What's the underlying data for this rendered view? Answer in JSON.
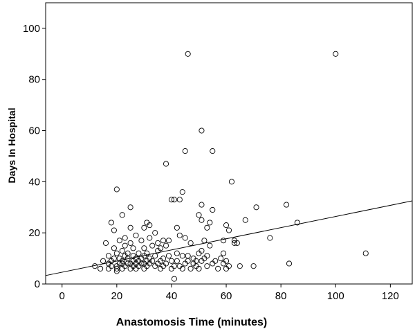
{
  "chart_data": {
    "type": "scatter",
    "title": "",
    "xlabel": "Anastomosis Time (minutes)",
    "ylabel": "Days In Hospital",
    "xlim": [
      -6,
      128
    ],
    "ylim": [
      0,
      110
    ],
    "x_ticks": [
      0,
      20,
      40,
      60,
      80,
      100,
      120
    ],
    "y_ticks": [
      0,
      20,
      40,
      60,
      80,
      100
    ],
    "grid": false,
    "legend": "none",
    "marker": "open-circle",
    "colors": {
      "background": "#ffffff",
      "marker": "#000000",
      "line": "#000000"
    },
    "fit_line": {
      "type": "linear",
      "x": [
        -6,
        128
      ],
      "y": [
        3.3,
        32.5
      ]
    },
    "points": [
      [
        12,
        7
      ],
      [
        14,
        6
      ],
      [
        15,
        9
      ],
      [
        16,
        16
      ],
      [
        17,
        8
      ],
      [
        17,
        6
      ],
      [
        17,
        11
      ],
      [
        18,
        24
      ],
      [
        18,
        7
      ],
      [
        18,
        9
      ],
      [
        19,
        10
      ],
      [
        19,
        14
      ],
      [
        19,
        21
      ],
      [
        20,
        37
      ],
      [
        20,
        7
      ],
      [
        20,
        5
      ],
      [
        20,
        12
      ],
      [
        20,
        6
      ],
      [
        21,
        8
      ],
      [
        21,
        10
      ],
      [
        21,
        17
      ],
      [
        22,
        27
      ],
      [
        22,
        8
      ],
      [
        22,
        6
      ],
      [
        22,
        9
      ],
      [
        22,
        13
      ],
      [
        23,
        15
      ],
      [
        23,
        11
      ],
      [
        23,
        7
      ],
      [
        23,
        18
      ],
      [
        24,
        8
      ],
      [
        24,
        10
      ],
      [
        24,
        12
      ],
      [
        25,
        30
      ],
      [
        25,
        6
      ],
      [
        25,
        8
      ],
      [
        25,
        22
      ],
      [
        25,
        16
      ],
      [
        26,
        9
      ],
      [
        26,
        11
      ],
      [
        26,
        7
      ],
      [
        26,
        14
      ],
      [
        27,
        10
      ],
      [
        27,
        6
      ],
      [
        27,
        8
      ],
      [
        27,
        19
      ],
      [
        28,
        9
      ],
      [
        28,
        12
      ],
      [
        28,
        7
      ],
      [
        29,
        8
      ],
      [
        29,
        17
      ],
      [
        29,
        10
      ],
      [
        30,
        11
      ],
      [
        30,
        22
      ],
      [
        30,
        6
      ],
      [
        30,
        14
      ],
      [
        30,
        8
      ],
      [
        31,
        24
      ],
      [
        31,
        9
      ],
      [
        31,
        12
      ],
      [
        31,
        7
      ],
      [
        32,
        23
      ],
      [
        32,
        10
      ],
      [
        32,
        18
      ],
      [
        32,
        8
      ],
      [
        33,
        15
      ],
      [
        33,
        9
      ],
      [
        34,
        20
      ],
      [
        34,
        11
      ],
      [
        34,
        7
      ],
      [
        35,
        8
      ],
      [
        35,
        13
      ],
      [
        35,
        16
      ],
      [
        36,
        14
      ],
      [
        36,
        9
      ],
      [
        36,
        6
      ],
      [
        37,
        10
      ],
      [
        37,
        17
      ],
      [
        37,
        7
      ],
      [
        38,
        47
      ],
      [
        38,
        15
      ],
      [
        38,
        8
      ],
      [
        39,
        17
      ],
      [
        39,
        11
      ],
      [
        40,
        33
      ],
      [
        40,
        9
      ],
      [
        40,
        6
      ],
      [
        41,
        33
      ],
      [
        41,
        7
      ],
      [
        41,
        2
      ],
      [
        42,
        22
      ],
      [
        42,
        12
      ],
      [
        42,
        9
      ],
      [
        43,
        33
      ],
      [
        43,
        19
      ],
      [
        43,
        7
      ],
      [
        44,
        36
      ],
      [
        44,
        11
      ],
      [
        44,
        6
      ],
      [
        45,
        52
      ],
      [
        45,
        18
      ],
      [
        45,
        8
      ],
      [
        46,
        90
      ],
      [
        46,
        11
      ],
      [
        46,
        9
      ],
      [
        47,
        16
      ],
      [
        47,
        6
      ],
      [
        48,
        8
      ],
      [
        48,
        10
      ],
      [
        49,
        9
      ],
      [
        49,
        7
      ],
      [
        50,
        27
      ],
      [
        50,
        12
      ],
      [
        50,
        6
      ],
      [
        51,
        60
      ],
      [
        51,
        31
      ],
      [
        51,
        25
      ],
      [
        51,
        13
      ],
      [
        51,
        9
      ],
      [
        52,
        17
      ],
      [
        52,
        10
      ],
      [
        53,
        22
      ],
      [
        53,
        11
      ],
      [
        53,
        7
      ],
      [
        54,
        24
      ],
      [
        54,
        15
      ],
      [
        55,
        52
      ],
      [
        55,
        29
      ],
      [
        55,
        8
      ],
      [
        56,
        9
      ],
      [
        57,
        6
      ],
      [
        58,
        10
      ],
      [
        59,
        17
      ],
      [
        59,
        12
      ],
      [
        59,
        8
      ],
      [
        60,
        23
      ],
      [
        60,
        9
      ],
      [
        60,
        6
      ],
      [
        61,
        21
      ],
      [
        61,
        7
      ],
      [
        62,
        40
      ],
      [
        63,
        17
      ],
      [
        63,
        16
      ],
      [
        64,
        16
      ],
      [
        65,
        7
      ],
      [
        67,
        25
      ],
      [
        70,
        7
      ],
      [
        71,
        30
      ],
      [
        76,
        18
      ],
      [
        82,
        31
      ],
      [
        83,
        8
      ],
      [
        86,
        24
      ],
      [
        100,
        90
      ],
      [
        111,
        12
      ]
    ]
  }
}
